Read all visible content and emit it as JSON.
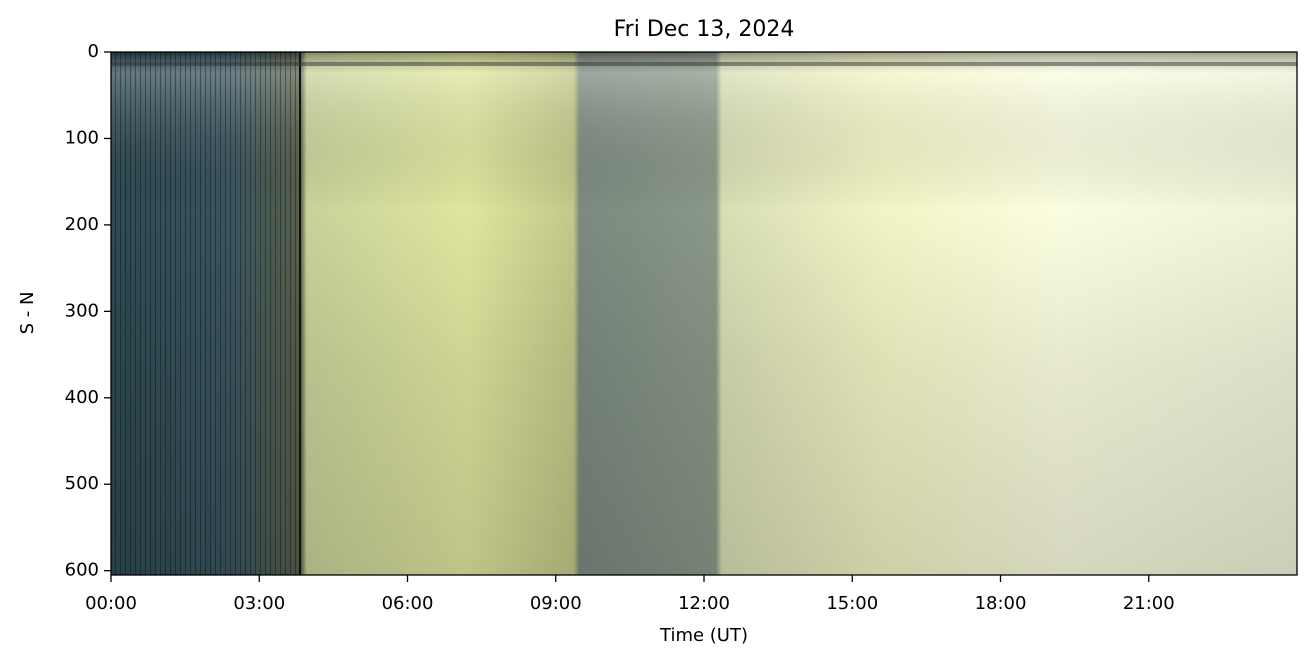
{
  "chart_data": {
    "type": "image",
    "title": "Fri Dec 13, 2024",
    "xlabel": "Time (UT)",
    "ylabel": "S - N",
    "xlim": [
      0,
      24
    ],
    "xticks": [
      {
        "value": 0,
        "label": "00:00"
      },
      {
        "value": 3,
        "label": "03:00"
      },
      {
        "value": 6,
        "label": "06:00"
      },
      {
        "value": 9,
        "label": "09:00"
      },
      {
        "value": 12,
        "label": "12:00"
      },
      {
        "value": 15,
        "label": "15:00"
      },
      {
        "value": 18,
        "label": "18:00"
      },
      {
        "value": 21,
        "label": "21:00"
      }
    ],
    "ylim": [
      0,
      605
    ],
    "y_inverted": true,
    "yticks": [
      0,
      100,
      200,
      300,
      400,
      500,
      600
    ]
  }
}
